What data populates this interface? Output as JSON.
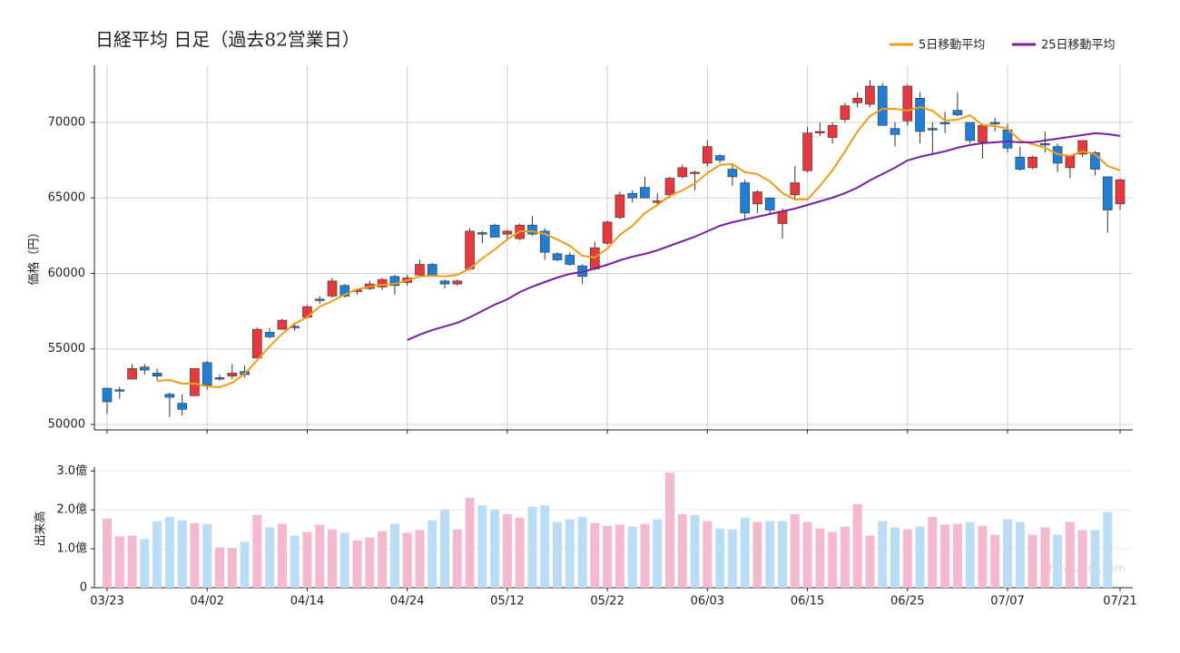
{
  "chart_data": [
    {
      "type": "candlestick",
      "title": "日経平均  日足（過去82営業日）",
      "ylabel": "価格（円）",
      "ylim": [
        49640,
        73780
      ],
      "yticks": [
        50000,
        55000,
        60000,
        65000,
        70000
      ],
      "grid": true,
      "up_color": "#e8383d",
      "down_color": "#1e7fd8",
      "legend": "upper right",
      "open": [
        52400,
        52300,
        53000,
        53800,
        53400,
        52000,
        51400,
        51900,
        54100,
        53100,
        53200,
        53500,
        54400,
        56100,
        56300,
        56500,
        57100,
        58300,
        58500,
        59200,
        58800,
        59000,
        59100,
        59800,
        59400,
        59900,
        60600,
        59500,
        59300,
        60300,
        62700,
        63200,
        62600,
        62300,
        63200,
        62800,
        61300,
        61200,
        60500,
        60300,
        62000,
        63700,
        65300,
        65700,
        64700,
        65200,
        66400,
        66700,
        67300,
        67800,
        66900,
        66000,
        64600,
        65000,
        63300,
        65200,
        66800,
        69300,
        69000,
        70200,
        71300,
        71200,
        72400,
        69600,
        70100,
        71600,
        69600,
        70000,
        70800,
        70000,
        68700,
        70000,
        69500,
        67700,
        67000,
        68600,
        68400,
        67000,
        67900,
        68000,
        66400,
        64600
      ],
      "high": [
        52400,
        52500,
        54000,
        54000,
        53700,
        52100,
        52000,
        53700,
        54200,
        53300,
        54000,
        53900,
        56400,
        56400,
        57000,
        56700,
        57900,
        58500,
        59700,
        59300,
        59000,
        59500,
        59700,
        59900,
        59900,
        60900,
        60700,
        59600,
        59600,
        63000,
        62800,
        63300,
        62900,
        63300,
        63800,
        63000,
        61400,
        61400,
        60600,
        62100,
        63500,
        65400,
        65500,
        66400,
        65300,
        66400,
        67200,
        66800,
        68800,
        67900,
        67200,
        66200,
        65500,
        65000,
        64300,
        67100,
        69700,
        70000,
        70000,
        71300,
        72000,
        72800,
        72600,
        70000,
        72500,
        72000,
        70000,
        70700,
        72000,
        70000,
        69900,
        70300,
        69900,
        68400,
        67800,
        69400,
        68600,
        67800,
        68800,
        68100,
        66400,
        66300
      ],
      "low": [
        50700,
        51700,
        53000,
        53300,
        52900,
        50500,
        50600,
        51900,
        52300,
        52900,
        53000,
        53100,
        54400,
        55700,
        56300,
        56200,
        57000,
        58000,
        58400,
        58400,
        58600,
        58900,
        58900,
        58600,
        59200,
        59800,
        59800,
        59000,
        59200,
        60200,
        62000,
        62400,
        62300,
        62200,
        62500,
        60900,
        60800,
        60500,
        59300,
        60200,
        61900,
        63600,
        64700,
        65000,
        64500,
        65000,
        66300,
        65500,
        67100,
        67300,
        65800,
        63500,
        64000,
        63900,
        62300,
        64900,
        66700,
        69100,
        68600,
        70000,
        71000,
        71000,
        69800,
        68400,
        69800,
        68600,
        67900,
        69300,
        70400,
        68600,
        67600,
        69400,
        68000,
        66800,
        66900,
        68000,
        66700,
        66300,
        67700,
        66500,
        62700,
        64200
      ],
      "close": [
        51500,
        52200,
        53700,
        53600,
        53200,
        51800,
        51000,
        53700,
        52600,
        53000,
        53400,
        53300,
        56300,
        55800,
        56900,
        56400,
        57800,
        58200,
        59500,
        58500,
        58900,
        59300,
        59600,
        59200,
        59700,
        60600,
        59900,
        59300,
        59500,
        62800,
        62600,
        62400,
        62800,
        63200,
        62600,
        61400,
        60900,
        60600,
        59800,
        61700,
        63400,
        65200,
        65000,
        65000,
        64800,
        66300,
        67000,
        66700,
        68400,
        67500,
        66400,
        64000,
        65400,
        64200,
        64100,
        66000,
        69300,
        69400,
        69800,
        71100,
        71600,
        72400,
        69800,
        69200,
        72400,
        69400,
        69500,
        69900,
        70500,
        68800,
        69800,
        69900,
        68300,
        66900,
        67700,
        68500,
        67300,
        67800,
        68800,
        66900,
        64200,
        66200
      ],
      "series": [
        {
          "name": "5日移動平均",
          "color": "#f39c12",
          "values": [
            null,
            null,
            null,
            null,
            52880,
            52940,
            52700,
            52700,
            52520,
            52460,
            52760,
            53360,
            54260,
            55170,
            56000,
            56670,
            57100,
            57800,
            58170,
            58600,
            58950,
            59130,
            59250,
            59300,
            59550,
            59800,
            59850,
            59800,
            59900,
            60330,
            60990,
            61590,
            62250,
            62790,
            62790,
            62610,
            62250,
            61830,
            61170,
            61050,
            61650,
            62550,
            63150,
            63990,
            64530,
            65130,
            65500,
            65970,
            66640,
            67180,
            67240,
            66700,
            66580,
            66100,
            65320,
            64900,
            64900,
            65800,
            66820,
            68080,
            69400,
            70420,
            70900,
            70900,
            70780,
            71020,
            70780,
            70120,
            70180,
            70480,
            69820,
            69760,
            69580,
            68800,
            68560,
            68320,
            67900,
            67780,
            68080,
            67900,
            67120,
            66820
          ]
        },
        {
          "name": "25日移動平均",
          "color": "#7b1fa2",
          "values": [
            null,
            null,
            null,
            null,
            null,
            null,
            null,
            null,
            null,
            null,
            null,
            null,
            null,
            null,
            null,
            null,
            null,
            null,
            null,
            null,
            null,
            null,
            null,
            null,
            55590,
            55950,
            56250,
            56490,
            56730,
            57090,
            57510,
            57930,
            58290,
            58770,
            59130,
            59430,
            59730,
            59970,
            60090,
            60330,
            60570,
            60870,
            61110,
            61290,
            61530,
            61830,
            62130,
            62430,
            62790,
            63150,
            63390,
            63570,
            63750,
            63930,
            64110,
            64290,
            64530,
            64770,
            65010,
            65320,
            65680,
            66160,
            66580,
            67000,
            67480,
            67720,
            67900,
            68080,
            68320,
            68500,
            68620,
            68680,
            68740,
            68680,
            68680,
            68800,
            68920,
            69040,
            69160,
            69280,
            69220,
            69100
          ]
        }
      ]
    },
    {
      "type": "bar",
      "ylabel": "出来高",
      "watermark": "show-zeet.com",
      "categories": [
        "03/23",
        null,
        null,
        null,
        null,
        null,
        null,
        null,
        "04/02",
        null,
        null,
        null,
        null,
        null,
        null,
        null,
        "04/14",
        null,
        null,
        null,
        null,
        null,
        null,
        null,
        "04/24",
        null,
        null,
        null,
        null,
        null,
        null,
        null,
        "05/12",
        null,
        null,
        null,
        null,
        null,
        null,
        null,
        "05/22",
        null,
        null,
        null,
        null,
        null,
        null,
        null,
        "06/03",
        null,
        null,
        null,
        null,
        null,
        null,
        null,
        "06/15",
        null,
        null,
        null,
        null,
        null,
        null,
        null,
        "06/25",
        null,
        null,
        null,
        null,
        null,
        null,
        null,
        "07/07",
        null,
        null,
        null,
        null,
        null,
        null,
        null,
        null,
        "07/21"
      ],
      "ylim": [
        0,
        3.1
      ],
      "yticks": [
        0,
        {
          "value": 1,
          "label": "1.0億"
        },
        {
          "value": 2,
          "label": "2.0億"
        },
        {
          "value": 3,
          "label": "3.0億"
        }
      ],
      "grid": true,
      "up_color": "#f5b9cf",
      "down_color": "#b9dcf7",
      "values": [
        1.78,
        1.32,
        1.34,
        1.25,
        1.71,
        1.82,
        1.73,
        1.66,
        1.64,
        1.04,
        1.02,
        1.18,
        1.87,
        1.55,
        1.64,
        1.34,
        1.43,
        1.62,
        1.5,
        1.41,
        1.22,
        1.29,
        1.45,
        1.64,
        1.41,
        1.48,
        1.73,
        2.01,
        1.5,
        2.31,
        2.12,
        2.01,
        1.89,
        1.8,
        2.08,
        2.12,
        1.69,
        1.76,
        1.82,
        1.66,
        1.59,
        1.62,
        1.57,
        1.64,
        1.76,
        2.96,
        1.89,
        1.87,
        1.71,
        1.52,
        1.5,
        1.8,
        1.69,
        1.71,
        1.71,
        1.89,
        1.69,
        1.52,
        1.43,
        1.57,
        2.15,
        1.34,
        1.71,
        1.55,
        1.5,
        1.57,
        1.82,
        1.62,
        1.64,
        1.69,
        1.59,
        1.36,
        1.76,
        1.69,
        1.36,
        1.55,
        1.36,
        1.69,
        1.48,
        1.48,
        1.94,
        null
      ]
    }
  ]
}
